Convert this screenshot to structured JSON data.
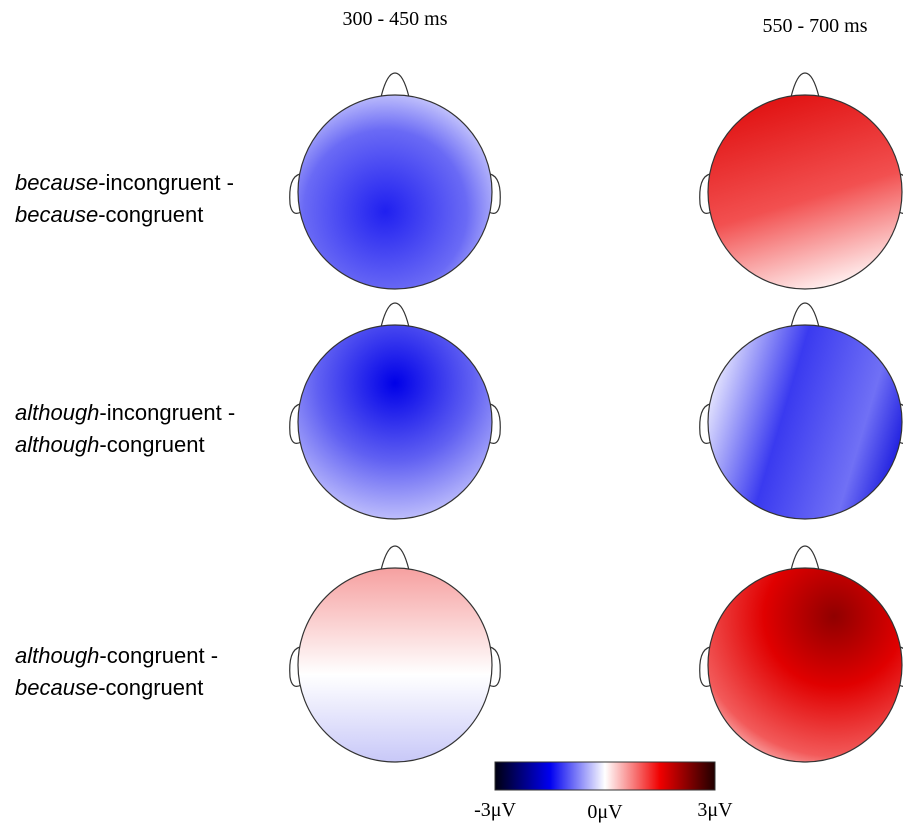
{
  "columns": [
    "300 - 450 ms",
    "550 - 700 ms"
  ],
  "rows": [
    {
      "lines": [
        {
          "italic": "because",
          "rest": "-incongruent -"
        },
        {
          "italic": "because",
          "rest": "-congruent"
        }
      ]
    },
    {
      "lines": [
        {
          "italic": "although",
          "rest": "-incongruent -"
        },
        {
          "italic": "although",
          "rest": "-congruent"
        }
      ]
    },
    {
      "lines": [
        {
          "italic": "although",
          "rest": "-congruent -"
        },
        {
          "italic": "because",
          "rest": "-congruent"
        }
      ]
    }
  ],
  "colorbar": {
    "labels": [
      "-3μV",
      "0μV",
      "3μV"
    ]
  }
}
